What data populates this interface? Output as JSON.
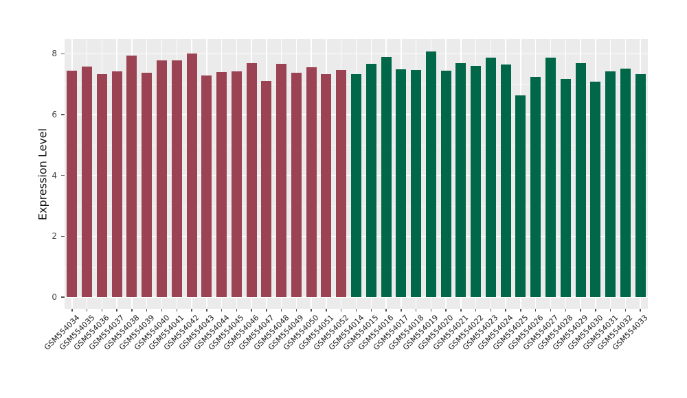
{
  "figure": {
    "title": "",
    "background_color": "#FFFFFF",
    "panel_background_color": "#EBEBEB",
    "grid_color": "#FFFFFF",
    "tick_mark_color": "#555555",
    "axis_text_color": "#1a1a1a"
  },
  "chart_data": {
    "type": "bar",
    "title": "",
    "xlabel": "",
    "ylabel": "Expression Level",
    "ylim": [
      -0.38,
      8.5
    ],
    "yticks": [
      0,
      2,
      4,
      6,
      8
    ],
    "ytick_labels": [
      "0",
      "2",
      "4",
      "6",
      "8"
    ],
    "yminor": [
      1,
      3,
      5,
      7
    ],
    "grid": true,
    "legend": false,
    "x_tick_rotation_deg": 45,
    "group_colors": {
      "maroon": "#9B4253",
      "green": "#006849"
    },
    "categories": [
      "GSM554034",
      "GSM554035",
      "GSM554036",
      "GSM554037",
      "GSM554038",
      "GSM554039",
      "GSM554040",
      "GSM554041",
      "GSM554042",
      "GSM554043",
      "GSM554044",
      "GSM554045",
      "GSM554046",
      "GSM554047",
      "GSM554048",
      "GSM554049",
      "GSM554050",
      "GSM554051",
      "GSM554052",
      "GSM554014",
      "GSM554015",
      "GSM554016",
      "GSM554017",
      "GSM554018",
      "GSM554019",
      "GSM554020",
      "GSM554021",
      "GSM554022",
      "GSM554023",
      "GSM554024",
      "GSM554025",
      "GSM554026",
      "GSM554027",
      "GSM554028",
      "GSM554029",
      "GSM554030",
      "GSM554031",
      "GSM554032",
      "GSM554033"
    ],
    "values": [
      7.45,
      7.57,
      7.34,
      7.43,
      7.94,
      7.38,
      7.79,
      7.79,
      8.0,
      7.28,
      7.4,
      7.41,
      7.68,
      7.11,
      7.66,
      7.38,
      7.56,
      7.32,
      7.47,
      7.34,
      7.66,
      7.89,
      7.49,
      7.47,
      8.07,
      7.44,
      7.69,
      7.59,
      7.87,
      7.64,
      6.62,
      7.25,
      7.86,
      7.17,
      7.68,
      7.08,
      7.43,
      7.52,
      7.34
    ],
    "groups": [
      "maroon",
      "maroon",
      "maroon",
      "maroon",
      "maroon",
      "maroon",
      "maroon",
      "maroon",
      "maroon",
      "maroon",
      "maroon",
      "maroon",
      "maroon",
      "maroon",
      "maroon",
      "maroon",
      "maroon",
      "maroon",
      "maroon",
      "green",
      "green",
      "green",
      "green",
      "green",
      "green",
      "green",
      "green",
      "green",
      "green",
      "green",
      "green",
      "green",
      "green",
      "green",
      "green",
      "green",
      "green",
      "green",
      "green"
    ]
  }
}
